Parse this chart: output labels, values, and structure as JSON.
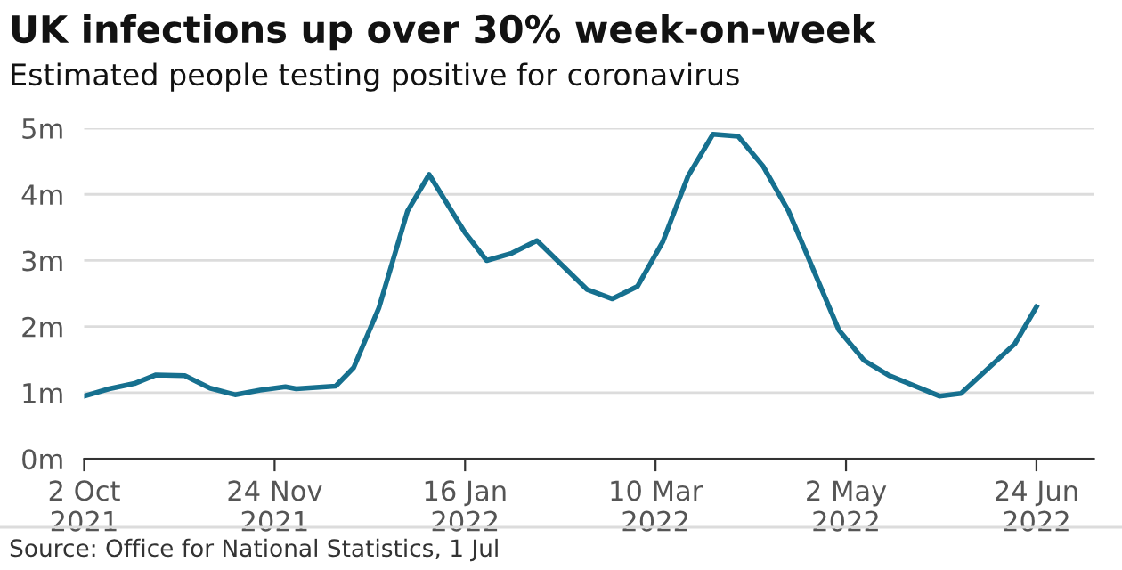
{
  "chart_data": {
    "type": "line",
    "title": "UK infections up over 30% week-on-week",
    "subtitle": "Estimated people testing positive for coronavirus",
    "annotations": [
      "Source: Office for National Statistics, 1 Jul"
    ],
    "x": [
      "2021-10-02",
      "2021-10-09",
      "2021-10-16",
      "2021-10-22",
      "2021-10-30",
      "2021-11-06",
      "2021-11-13",
      "2021-11-20",
      "2021-11-27",
      "2021-11-30",
      "2021-12-11",
      "2021-12-16",
      "2021-12-23",
      "2021-12-31",
      "2022-01-06",
      "2022-01-16",
      "2022-01-22",
      "2022-01-29",
      "2022-02-05",
      "2022-02-19",
      "2022-02-26",
      "2022-03-05",
      "2022-03-12",
      "2022-03-19",
      "2022-03-26",
      "2022-04-02",
      "2022-04-09",
      "2022-04-16",
      "2022-04-30",
      "2022-05-07",
      "2022-05-14",
      "2022-05-28",
      "2022-06-03",
      "2022-06-18",
      "2022-06-24"
    ],
    "series": [
      {
        "color": "#16708f",
        "values": [
          0.95,
          1.06,
          1.14,
          1.27,
          1.26,
          1.07,
          0.97,
          1.04,
          1.09,
          1.06,
          1.1,
          1.38,
          2.28,
          3.75,
          4.3,
          3.42,
          3.0,
          3.11,
          3.3,
          2.56,
          2.42,
          2.61,
          3.28,
          4.27,
          4.91,
          4.88,
          4.42,
          3.75,
          1.95,
          1.49,
          1.26,
          0.95,
          0.99,
          1.74,
          2.3
        ]
      }
    ],
    "xlim": [
      "2021-10-02",
      "2022-07-10"
    ],
    "xticks": [
      {
        "value": "2021-10-02",
        "label": "2 Oct\n2021"
      },
      {
        "value": "2021-11-24",
        "label": "24 Nov\n2021"
      },
      {
        "value": "2022-01-16",
        "label": "16 Jan\n2022"
      },
      {
        "value": "2022-03-10",
        "label": "10 Mar\n2022"
      },
      {
        "value": "2022-05-02",
        "label": "2 May\n2022"
      },
      {
        "value": "2022-06-24",
        "label": "24 Jun\n2022"
      }
    ],
    "ylim": [
      0,
      5
    ],
    "yticks": [
      {
        "value": 0,
        "label": "0m"
      },
      {
        "value": 1,
        "label": "1m"
      },
      {
        "value": 2,
        "label": "2m"
      },
      {
        "value": 3,
        "label": "3m"
      },
      {
        "value": 4,
        "label": "4m"
      },
      {
        "value": 5,
        "label": "5m"
      }
    ],
    "grid": "y",
    "line_style": "solid",
    "marker": "none"
  }
}
